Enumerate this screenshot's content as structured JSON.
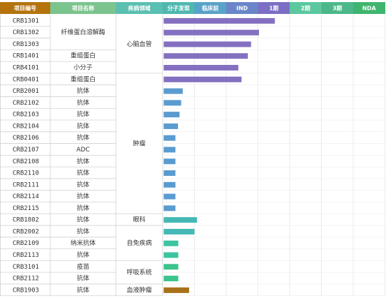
{
  "chart_data": {
    "type": "bar",
    "orientation": "horizontal",
    "columns": {
      "code": "项目编号",
      "name": "项目名称",
      "area": "疾病领域"
    },
    "phases": [
      "分子发现",
      "临床前",
      "IND",
      "1期",
      "2期",
      "3期",
      "NDA"
    ],
    "phase_colors": [
      "#4fb8b0",
      "#5aa3c8",
      "#6a86c8",
      "#7b6ec4",
      "#5bc8a0",
      "#4cb88a",
      "#3fb56f"
    ],
    "rows": [
      {
        "code": "CRB1301",
        "name": "",
        "progress": 3.5,
        "color": "#8470c0"
      },
      {
        "code": "CRB1302",
        "name": "纤维蛋白溶解酶",
        "progress": 3.0,
        "color": "#8470c0"
      },
      {
        "code": "CRB1303",
        "name": "",
        "progress": 2.75,
        "color": "#8470c0"
      },
      {
        "code": "CRB1401",
        "name": "重组蛋白",
        "progress": 2.65,
        "color": "#8470c0"
      },
      {
        "code": "CRB4101",
        "name": "小分子",
        "progress": 2.35,
        "color": "#8470c0"
      },
      {
        "code": "CRB0401",
        "name": "重组蛋白",
        "progress": 2.45,
        "color": "#8470c0"
      },
      {
        "code": "CRB2001",
        "name": "抗体",
        "progress": 0.6,
        "color": "#5a9bd0"
      },
      {
        "code": "CRB2102",
        "name": "抗体",
        "progress": 0.55,
        "color": "#5a9bd0"
      },
      {
        "code": "CRB2103",
        "name": "抗体",
        "progress": 0.5,
        "color": "#5a9bd0"
      },
      {
        "code": "CRB2104",
        "name": "抗体",
        "progress": 0.45,
        "color": "#5a9bd0"
      },
      {
        "code": "CRB2106",
        "name": "抗体",
        "progress": 0.37,
        "color": "#5a9bd0"
      },
      {
        "code": "CRB2107",
        "name": "ADC",
        "progress": 0.37,
        "color": "#5a9bd0"
      },
      {
        "code": "CRB2108",
        "name": "抗体",
        "progress": 0.37,
        "color": "#5a9bd0"
      },
      {
        "code": "CRB2110",
        "name": "抗体",
        "progress": 0.37,
        "color": "#5a9bd0"
      },
      {
        "code": "CRB2111",
        "name": "抗体",
        "progress": 0.37,
        "color": "#5a9bd0"
      },
      {
        "code": "CRB2114",
        "name": "抗体",
        "progress": 0.37,
        "color": "#5a9bd0"
      },
      {
        "code": "CRB2115",
        "name": "抗体",
        "progress": 0.37,
        "color": "#5a9bd0"
      },
      {
        "code": "CRB1802",
        "name": "抗体",
        "progress": 1.05,
        "color": "#45b8b5"
      },
      {
        "code": "CRB2002",
        "name": "抗体",
        "progress": 0.97,
        "color": "#45b8b5"
      },
      {
        "code": "CRB2109",
        "name": "纳米抗体",
        "progress": 0.46,
        "color": "#3cc4a0"
      },
      {
        "code": "CRB2113",
        "name": "抗体",
        "progress": 0.46,
        "color": "#3cc4a0"
      },
      {
        "code": "CRB3101",
        "name": "疫苗",
        "progress": 0.46,
        "color": "#3cc48c"
      },
      {
        "code": "CRB2112",
        "name": "抗体",
        "progress": 0.46,
        "color": "#3cc48c"
      },
      {
        "code": "CRB1903",
        "name": "抗体",
        "progress": 0.8,
        "color": "#a8711a"
      }
    ],
    "merged_names": [
      {
        "label": "纤维蛋白溶解酶",
        "start": 0,
        "end": 2
      }
    ],
    "areas": [
      {
        "label": "心脑血管",
        "start": 0,
        "end": 4
      },
      {
        "label": "肿瘤",
        "start": 5,
        "end": 16
      },
      {
        "label": "眼科",
        "start": 17,
        "end": 17
      },
      {
        "label": "自免疾病",
        "start": 18,
        "end": 20
      },
      {
        "label": "呼吸系统",
        "start": 21,
        "end": 22
      },
      {
        "label": "血液肿瘤",
        "start": 23,
        "end": 23
      }
    ],
    "header_colors": {
      "code": "#b5730e",
      "name": "#7cc48e",
      "area": "#5bbfb1"
    }
  }
}
